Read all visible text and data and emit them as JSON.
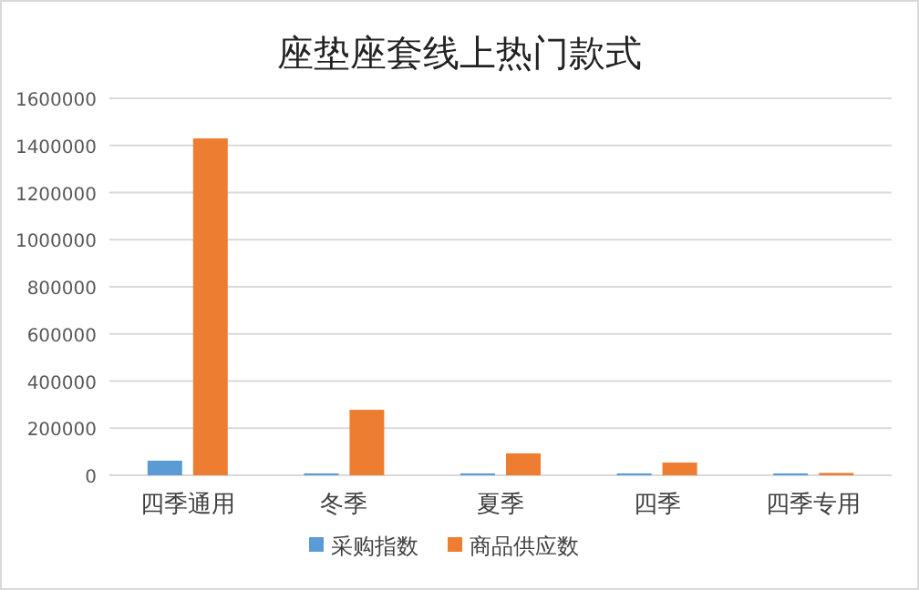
{
  "chart_data": {
    "type": "bar",
    "title": "座垫座套线上热门款式",
    "categories": [
      "四季通用",
      "冬季",
      "夏季",
      "四季",
      "四季专用"
    ],
    "series": [
      {
        "name": "采购指数",
        "color": "#5b9bd5",
        "values": [
          62000,
          8000,
          8000,
          8000,
          8000
        ]
      },
      {
        "name": "商品供应数",
        "color": "#ed7d31",
        "values": [
          1430000,
          278000,
          93000,
          54000,
          10000
        ]
      }
    ],
    "ylim": [
      0,
      1600000
    ],
    "yticks": [
      0,
      200000,
      400000,
      600000,
      800000,
      1000000,
      1200000,
      1400000,
      1600000
    ],
    "grid": "y",
    "legend": "bottom"
  }
}
